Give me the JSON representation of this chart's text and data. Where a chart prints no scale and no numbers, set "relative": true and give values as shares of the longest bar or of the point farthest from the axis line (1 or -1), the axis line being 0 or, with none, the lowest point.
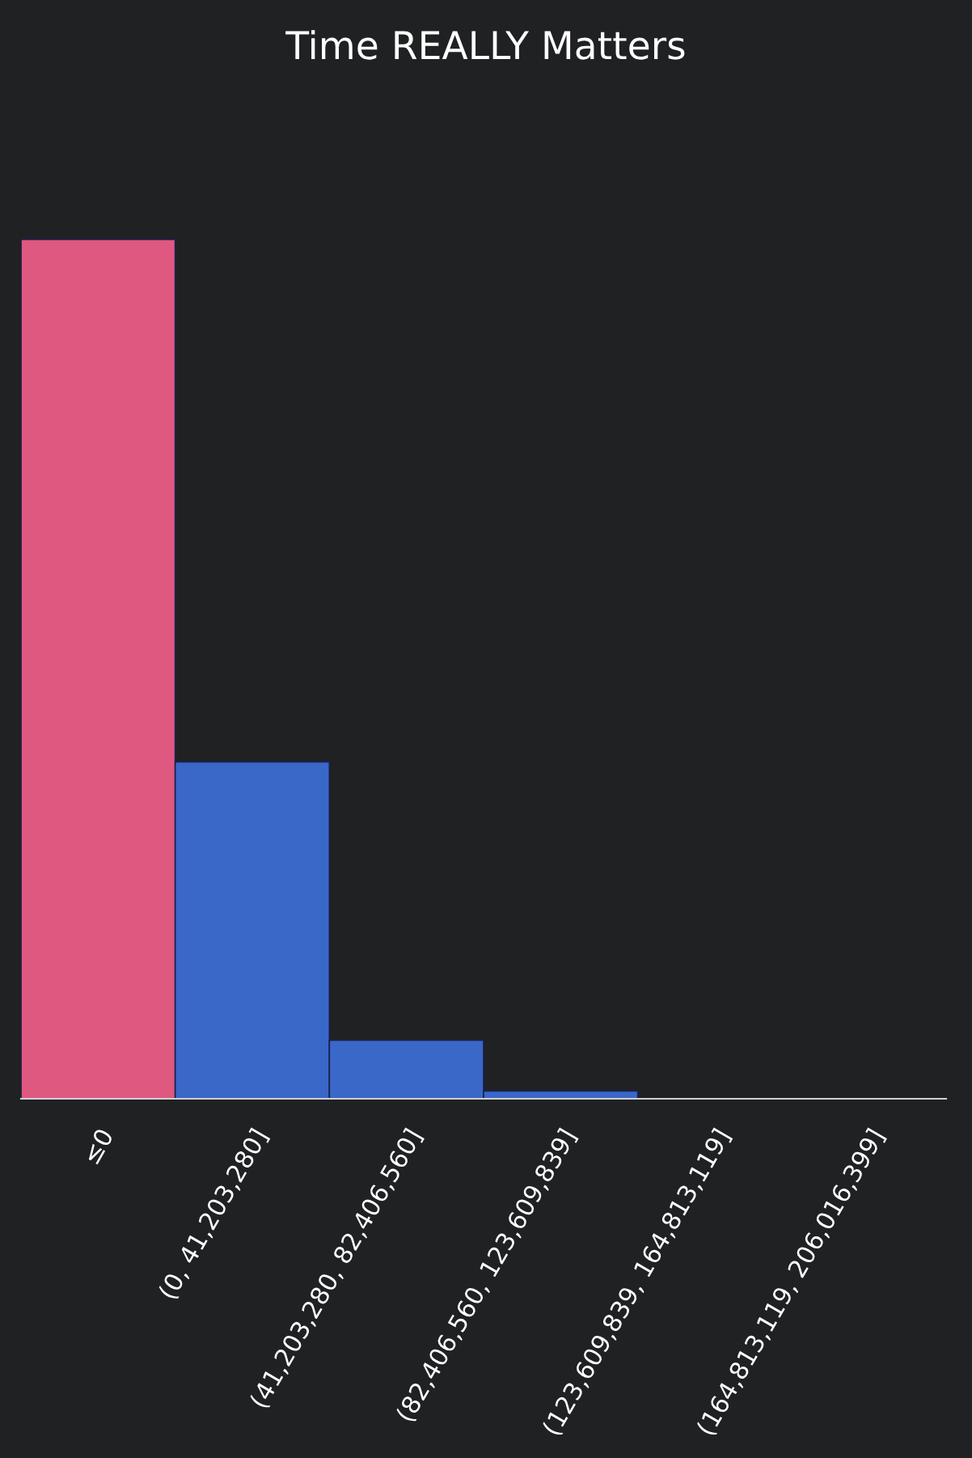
{
  "chart_data": {
    "type": "bar",
    "title": "Time REALLY Matters",
    "relative": true,
    "categories": [
      "≤0",
      "(0, 41,203,280]",
      "(41,203,280, 82,406,560]",
      "(82,406,560, 123,609,839]",
      "(123,609,839, 164,813,119]",
      "(164,813,119, 206,016,399]"
    ],
    "values": [
      1,
      0.392,
      0.068,
      0.009,
      0,
      0
    ],
    "colors": [
      "#df5880",
      "#3a68c8",
      "#3a68c8",
      "#3a68c8",
      "#3a68c8",
      "#3a68c8"
    ],
    "grid": false,
    "legend": false
  }
}
